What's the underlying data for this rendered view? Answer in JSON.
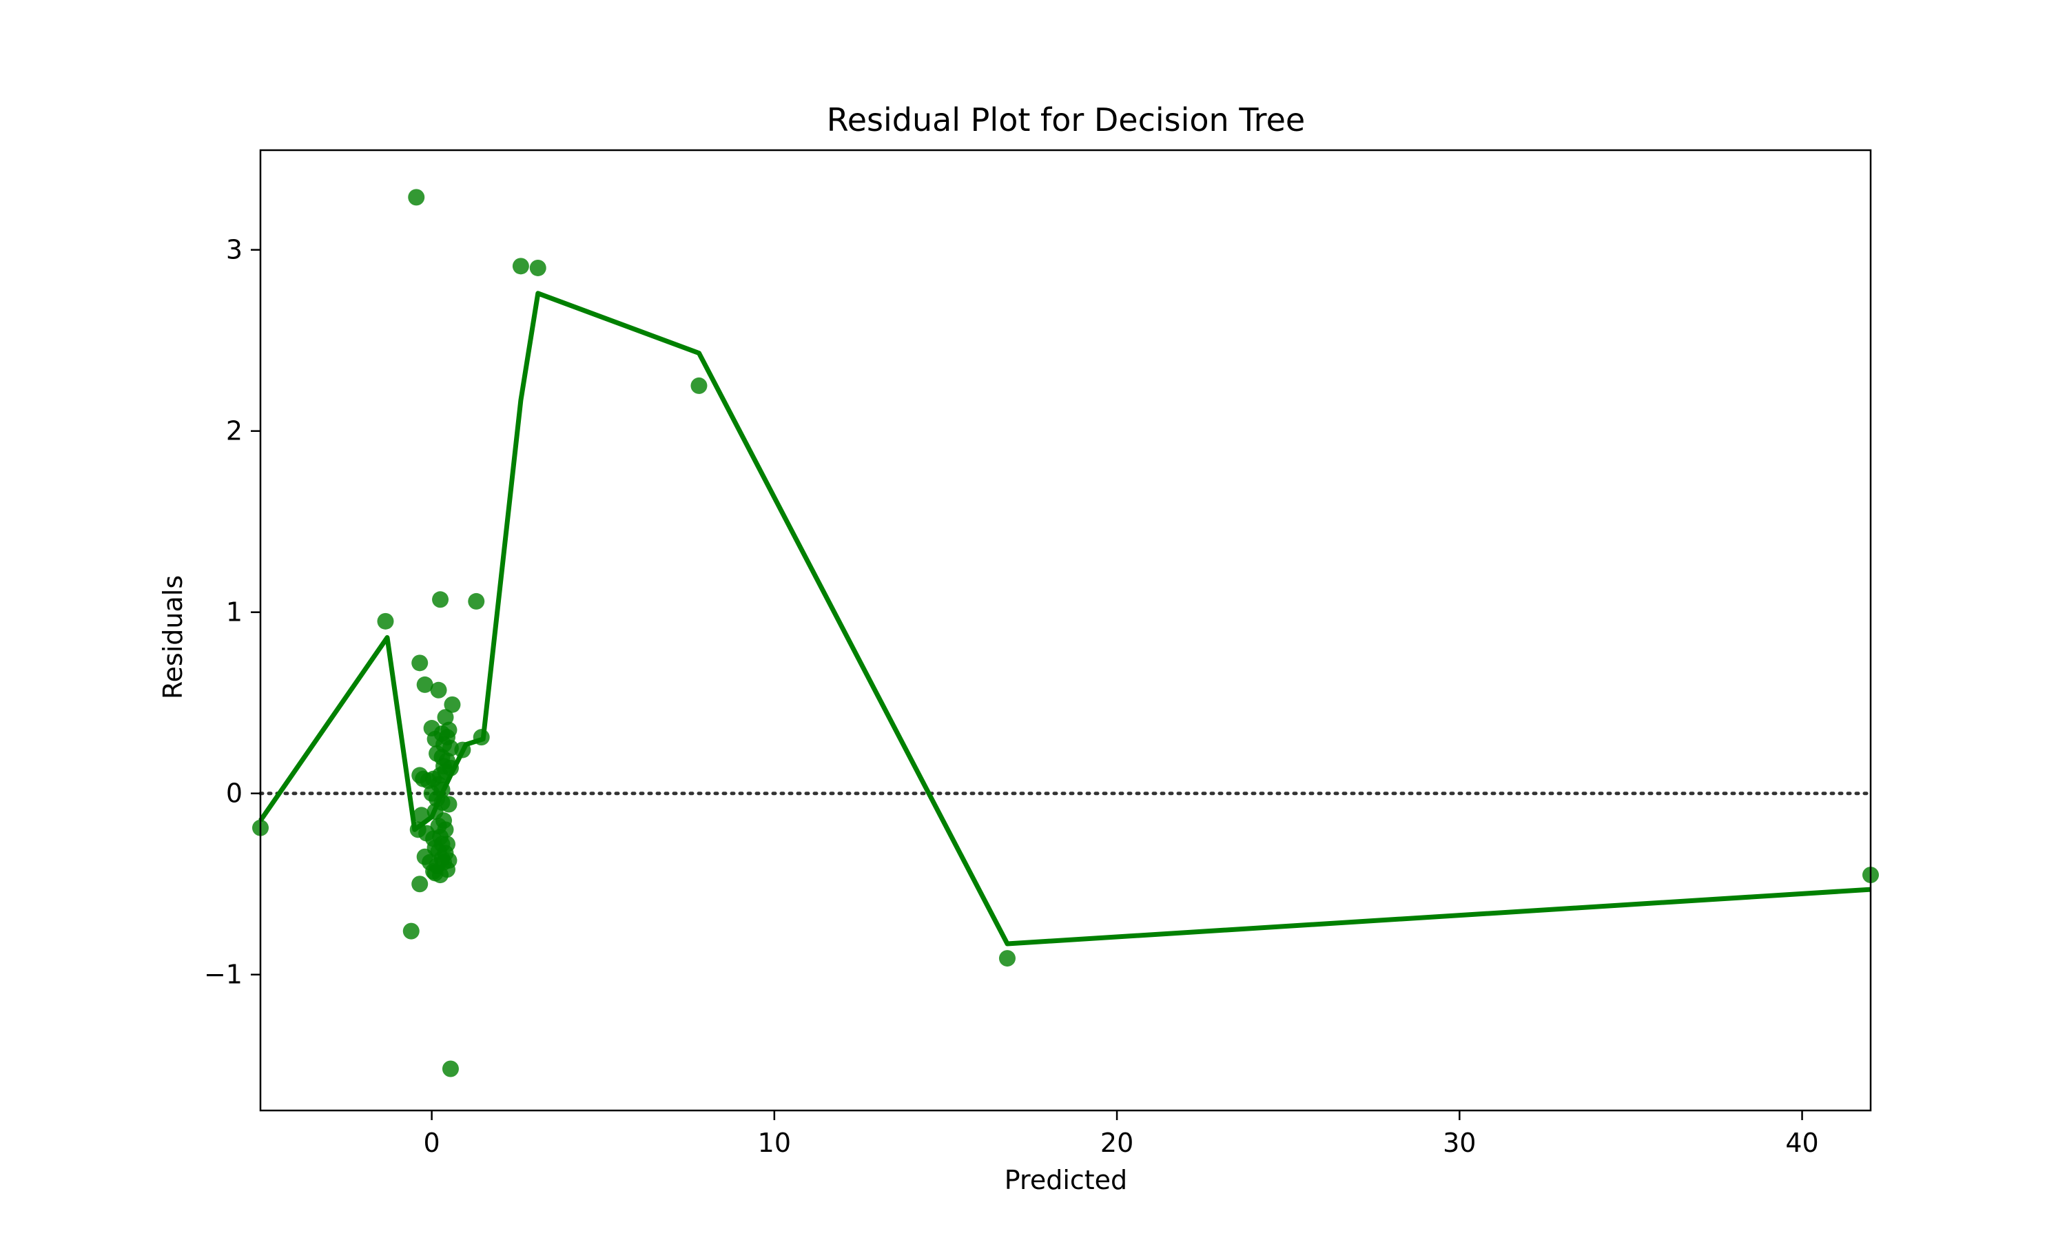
{
  "chart_data": {
    "type": "scatter",
    "title": "Residual Plot for Decision Tree",
    "xlabel": "Predicted",
    "ylabel": "Residuals",
    "xlim": [
      -5,
      42
    ],
    "ylim": [
      -1.75,
      3.55
    ],
    "x_ticks": [
      0,
      10,
      20,
      30,
      40
    ],
    "y_ticks": [
      -1,
      0,
      1,
      2,
      3
    ],
    "x_tick_labels": [
      "0",
      "10",
      "20",
      "30",
      "40"
    ],
    "y_tick_labels": [
      "−1",
      "0",
      "1",
      "2",
      "3"
    ],
    "grid": false,
    "legend": "none",
    "reference_line": {
      "y": 0,
      "style": "dotted",
      "color": "#333333"
    },
    "colors": {
      "points": "#008000",
      "line": "#008000"
    },
    "series": [
      {
        "kind": "points",
        "x": [
          -0.45,
          2.6,
          3.1,
          7.8,
          -1.35,
          -0.35,
          0.25,
          1.3,
          -0.2,
          0.2,
          0.6,
          0.4,
          0.0,
          0.5,
          0.3,
          0.1,
          0.45,
          0.35,
          0.55,
          1.45,
          0.9,
          0.15,
          0.3,
          0.45,
          -0.35,
          -0.25,
          -0.1,
          0.05,
          0.25,
          0.4,
          0.55,
          0.35,
          0.2,
          0.3,
          0.0,
          0.15,
          0.3,
          -0.4,
          -0.3,
          0.1,
          0.5,
          0.35,
          0.2,
          -0.15,
          0.05,
          0.4,
          0.25,
          0.3,
          0.1,
          0.2,
          0.45,
          0.4,
          0.3,
          -0.05,
          0.15,
          0.35,
          0.1,
          0.45,
          0.5,
          0.25,
          0.05,
          -0.2,
          -0.35,
          -0.6,
          0.55,
          16.8,
          42.0,
          -5.0
        ],
        "y": [
          3.29,
          2.91,
          2.9,
          2.25,
          0.95,
          0.72,
          1.07,
          1.06,
          0.6,
          0.57,
          0.49,
          0.42,
          0.36,
          0.35,
          0.33,
          0.3,
          0.31,
          0.27,
          0.25,
          0.31,
          0.24,
          0.22,
          0.2,
          0.18,
          0.1,
          0.08,
          0.07,
          0.08,
          0.1,
          0.12,
          0.14,
          0.15,
          0.05,
          0.02,
          0.0,
          -0.03,
          -0.05,
          -0.2,
          -0.12,
          -0.1,
          -0.06,
          -0.15,
          -0.18,
          -0.22,
          -0.25,
          -0.2,
          -0.24,
          -0.28,
          -0.3,
          -0.32,
          -0.28,
          -0.33,
          -0.36,
          -0.38,
          -0.4,
          -0.38,
          -0.44,
          -0.42,
          -0.37,
          -0.45,
          -0.43,
          -0.35,
          -0.5,
          -0.76,
          -1.52,
          -0.91,
          -0.45,
          -0.19
        ]
      },
      {
        "kind": "line",
        "x": [
          -5.0,
          -1.3,
          -0.5,
          0.0,
          0.3,
          0.6,
          1.0,
          1.5,
          2.6,
          3.1,
          7.8,
          16.8,
          42.0
        ],
        "y": [
          -0.15,
          0.86,
          -0.2,
          -0.13,
          0.0,
          0.12,
          0.27,
          0.3,
          2.17,
          2.76,
          2.43,
          -0.83,
          -0.53
        ]
      }
    ]
  }
}
